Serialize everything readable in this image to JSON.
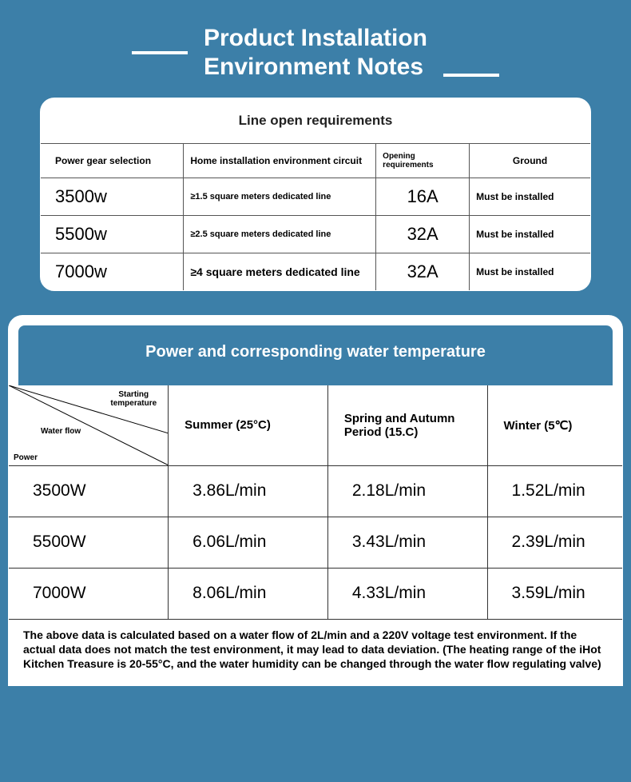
{
  "title": "Product Installation\nEnvironment Notes",
  "card1": {
    "header": "Line open requirements",
    "columns": [
      "Power gear selection",
      "Home installation environment circuit",
      "Opening requirements",
      "Ground"
    ],
    "rows": [
      {
        "power": "3500w",
        "env": "≥1.5 square meters dedicated line",
        "amp": "16A",
        "ground": "Must be installed"
      },
      {
        "power": "5500w",
        "env": "≥2.5 square meters dedicated line",
        "amp": "32A",
        "ground": "Must be installed"
      },
      {
        "power": "7000w",
        "env": "≥4 square meters dedicated line",
        "amp": "32A",
        "ground": "Must be installed"
      }
    ]
  },
  "card2": {
    "header": "Power and corresponding water temperature",
    "diag_labels": {
      "starting": "Starting\ntemperature",
      "flow": "Water flow",
      "power": "Power"
    },
    "columns": [
      "Summer (25°C)",
      "Spring and Autumn Period (15.C)",
      "Winter (5℃)"
    ],
    "rows": [
      {
        "power": "3500W",
        "vals": [
          "3.86L/min",
          "2.18L/min",
          "1.52L/min"
        ]
      },
      {
        "power": "5500W",
        "vals": [
          "6.06L/min",
          "3.43L/min",
          "2.39L/min"
        ]
      },
      {
        "power": "7000W",
        "vals": [
          "8.06L/min",
          "4.33L/min",
          "3.59L/min"
        ]
      }
    ],
    "footnote": "The above data is calculated based on a water flow of 2L/min and a 220V voltage test environment. If the actual data does not match the test environment, it may lead to data deviation. (The heating range of the iHot Kitchen Treasure is 20-55°C, and the water humidity can be changed through the water flow regulating valve)"
  },
  "colors": {
    "page_bg": "#3c7fa8",
    "card_bg": "#ffffff",
    "text": "#000000",
    "title": "#ffffff",
    "border": "#333333"
  }
}
